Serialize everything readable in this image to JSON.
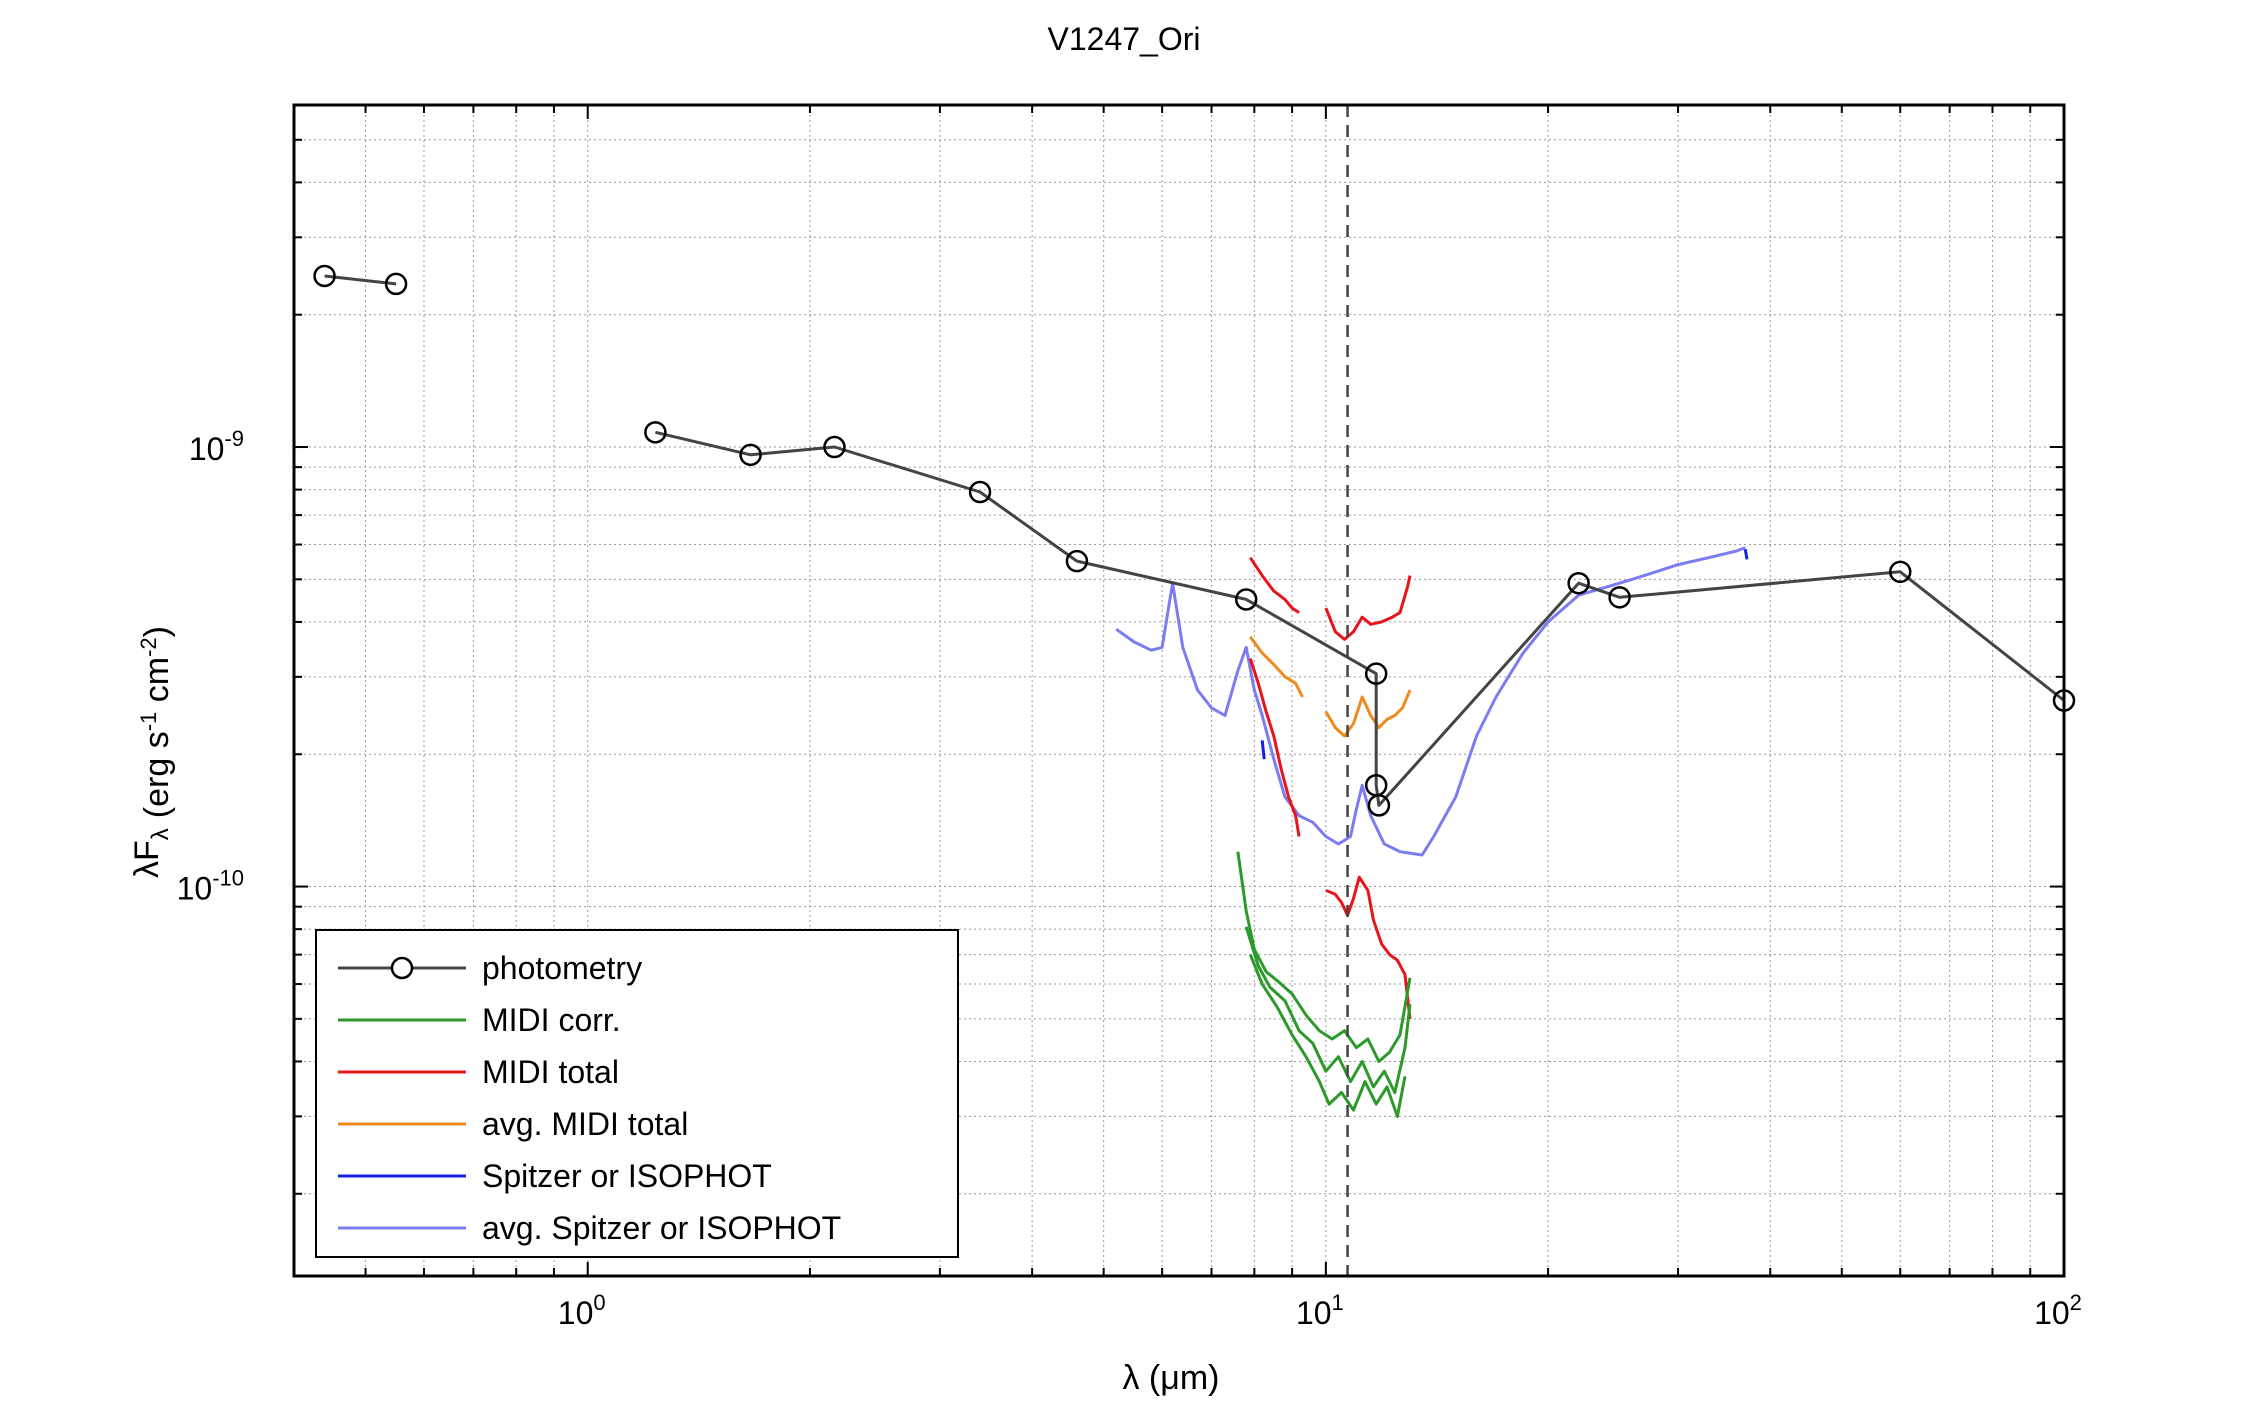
{
  "chart_data": {
    "type": "line",
    "title": "V1247_Ori",
    "xlabel": "λ (μm)",
    "ylabel": "λF",
    "ylabel_sub": "λ",
    "ylabel_units": "(erg s-1 cm-2)",
    "xscale": "log",
    "yscale": "log",
    "xlim": [
      0.4,
      100
    ],
    "ylim": [
      1.3e-11,
      6e-09
    ],
    "grid": true,
    "legend_position": "lower-left",
    "x_ticks": [
      {
        "value": 1,
        "base": "10",
        "exp": "0"
      },
      {
        "value": 10,
        "base": "10",
        "exp": "1"
      },
      {
        "value": 100,
        "base": "10",
        "exp": "2"
      }
    ],
    "y_ticks": [
      {
        "value": 1e-10,
        "base": "10",
        "exp": "-10"
      },
      {
        "value": 1e-09,
        "base": "10",
        "exp": "-9"
      }
    ],
    "vline": {
      "x": 10.7,
      "style": "dashed",
      "color": "#444444"
    },
    "series": [
      {
        "name": "photometry",
        "color": "#444444",
        "marker": "circle",
        "segments": [
          [
            [
              0.44,
              2.45e-09
            ],
            [
              0.55,
              2.35e-09
            ]
          ],
          [
            [
              1.235,
              1.08e-09
            ],
            [
              1.662,
              9.6e-10
            ],
            [
              2.159,
              1e-09
            ],
            [
              3.4,
              7.9e-10
            ],
            [
              4.6,
              5.5e-10
            ],
            [
              7.8,
              4.5e-10
            ],
            [
              11.7,
              3.05e-10
            ],
            [
              11.7,
              1.7e-10
            ],
            [
              11.8,
              1.53e-10
            ],
            [
              22,
              4.9e-10
            ],
            [
              25,
              4.55e-10
            ],
            [
              60,
              5.2e-10
            ],
            [
              100,
              2.65e-10
            ]
          ]
        ]
      },
      {
        "name": "MIDI corr.",
        "color": "#2b9a2b",
        "segments": [
          [
            [
              7.6,
              1.2e-10
            ],
            [
              7.8,
              8.8e-11
            ],
            [
              8.0,
              7.2e-11
            ],
            [
              8.3,
              6.4e-11
            ],
            [
              8.6,
              6.1e-11
            ],
            [
              9.0,
              5.7e-11
            ],
            [
              9.4,
              5.1e-11
            ],
            [
              9.8,
              4.7e-11
            ],
            [
              10.2,
              4.5e-11
            ],
            [
              10.6,
              4.7e-11
            ],
            [
              11.0,
              4.3e-11
            ],
            [
              11.4,
              4.5e-11
            ],
            [
              11.8,
              4e-11
            ],
            [
              12.2,
              4.2e-11
            ],
            [
              12.6,
              4.6e-11
            ],
            [
              13.0,
              6.2e-11
            ]
          ],
          [
            [
              7.8,
              8.1e-11
            ],
            [
              8.1,
              6.6e-11
            ],
            [
              8.4,
              5.9e-11
            ],
            [
              8.8,
              5.5e-11
            ],
            [
              9.2,
              4.7e-11
            ],
            [
              9.6,
              4.4e-11
            ],
            [
              10.0,
              3.8e-11
            ],
            [
              10.4,
              4.1e-11
            ],
            [
              10.8,
              3.6e-11
            ],
            [
              11.2,
              4e-11
            ],
            [
              11.6,
              3.5e-11
            ],
            [
              12.0,
              3.8e-11
            ],
            [
              12.4,
              3.4e-11
            ],
            [
              12.8,
              4.3e-11
            ],
            [
              13.0,
              5.4e-11
            ]
          ],
          [
            [
              7.9,
              7e-11
            ],
            [
              8.2,
              6e-11
            ],
            [
              8.6,
              5.3e-11
            ],
            [
              9.0,
              4.6e-11
            ],
            [
              9.4,
              4.1e-11
            ],
            [
              9.8,
              3.6e-11
            ],
            [
              10.1,
              3.2e-11
            ],
            [
              10.5,
              3.4e-11
            ],
            [
              10.9,
              3.1e-11
            ],
            [
              11.3,
              3.6e-11
            ],
            [
              11.7,
              3.2e-11
            ],
            [
              12.1,
              3.5e-11
            ],
            [
              12.5,
              3e-11
            ],
            [
              12.8,
              3.7e-11
            ]
          ]
        ]
      },
      {
        "name": "MIDI total",
        "color": "#e8141c",
        "segments": [
          [
            [
              7.9,
              5.6e-10
            ],
            [
              8.2,
              5.1e-10
            ],
            [
              8.5,
              4.7e-10
            ],
            [
              8.8,
              4.5e-10
            ],
            [
              9.0,
              4.3e-10
            ],
            [
              9.2,
              4.2e-10
            ]
          ],
          [
            [
              10.0,
              4.3e-10
            ],
            [
              10.3,
              3.8e-10
            ],
            [
              10.6,
              3.65e-10
            ],
            [
              10.9,
              3.8e-10
            ],
            [
              11.2,
              4.1e-10
            ],
            [
              11.5,
              3.95e-10
            ],
            [
              11.9,
              4e-10
            ],
            [
              12.3,
              4.1e-10
            ],
            [
              12.6,
              4.2e-10
            ],
            [
              12.9,
              4.8e-10
            ],
            [
              13.0,
              5.1e-10
            ]
          ],
          [
            [
              7.9,
              3.3e-10
            ],
            [
              8.1,
              2.9e-10
            ],
            [
              8.3,
              2.5e-10
            ],
            [
              8.5,
              2.2e-10
            ],
            [
              8.7,
              1.85e-10
            ],
            [
              8.9,
              1.6e-10
            ],
            [
              9.1,
              1.45e-10
            ],
            [
              9.2,
              1.3e-10
            ]
          ],
          [
            [
              10.0,
              9.8e-11
            ],
            [
              10.3,
              9.6e-11
            ],
            [
              10.5,
              9.2e-11
            ],
            [
              10.7,
              8.6e-11
            ],
            [
              10.9,
              9.4e-11
            ],
            [
              11.1,
              1.05e-10
            ],
            [
              11.4,
              9.8e-11
            ],
            [
              11.6,
              8.4e-11
            ],
            [
              11.9,
              7.4e-11
            ],
            [
              12.2,
              7e-11
            ],
            [
              12.5,
              6.8e-11
            ],
            [
              12.8,
              6.3e-11
            ],
            [
              13.0,
              5e-11
            ]
          ]
        ]
      },
      {
        "name": "avg. MIDI total",
        "color": "#f08a1e",
        "segments": [
          [
            [
              7.9,
              3.7e-10
            ],
            [
              8.2,
              3.4e-10
            ],
            [
              8.5,
              3.2e-10
            ],
            [
              8.8,
              3e-10
            ],
            [
              9.1,
              2.9e-10
            ],
            [
              9.3,
              2.7e-10
            ]
          ],
          [
            [
              10.0,
              2.5e-10
            ],
            [
              10.3,
              2.3e-10
            ],
            [
              10.6,
              2.2e-10
            ],
            [
              10.9,
              2.35e-10
            ],
            [
              11.2,
              2.7e-10
            ],
            [
              11.5,
              2.45e-10
            ],
            [
              11.8,
              2.3e-10
            ],
            [
              12.1,
              2.4e-10
            ],
            [
              12.4,
              2.45e-10
            ],
            [
              12.7,
              2.55e-10
            ],
            [
              13.0,
              2.8e-10
            ]
          ]
        ]
      },
      {
        "name": "Spitzer or ISOPHOT",
        "color": "#1420e6",
        "segments": [
          [
            [
              8.2,
              2.15e-10
            ],
            [
              8.25,
              1.95e-10
            ]
          ],
          [
            [
              37,
              5.85e-10
            ],
            [
              37.2,
              5.55e-10
            ]
          ]
        ]
      },
      {
        "name": "avg. Spitzer or ISOPHOT",
        "color": "#7b7bf2",
        "segments": [
          [
            [
              5.2,
              3.85e-10
            ],
            [
              5.5,
              3.6e-10
            ],
            [
              5.8,
              3.45e-10
            ],
            [
              6.0,
              3.5e-10
            ],
            [
              6.2,
              4.9e-10
            ],
            [
              6.4,
              3.5e-10
            ],
            [
              6.7,
              2.8e-10
            ],
            [
              7.0,
              2.55e-10
            ],
            [
              7.3,
              2.45e-10
            ],
            [
              7.6,
              3.1e-10
            ],
            [
              7.8,
              3.5e-10
            ],
            [
              8.0,
              2.8e-10
            ],
            [
              8.2,
              2.45e-10
            ],
            [
              8.5,
              1.95e-10
            ],
            [
              8.8,
              1.6e-10
            ],
            [
              9.2,
              1.45e-10
            ],
            [
              9.6,
              1.4e-10
            ],
            [
              10.0,
              1.3e-10
            ],
            [
              10.4,
              1.25e-10
            ],
            [
              10.8,
              1.3e-10
            ],
            [
              11.0,
              1.5e-10
            ],
            [
              11.2,
              1.7e-10
            ],
            [
              11.5,
              1.45e-10
            ],
            [
              12.0,
              1.25e-10
            ],
            [
              12.6,
              1.2e-10
            ],
            [
              13.5,
              1.18e-10
            ],
            [
              14.0,
              1.3e-10
            ],
            [
              15.0,
              1.6e-10
            ],
            [
              16.0,
              2.2e-10
            ],
            [
              17.0,
              2.7e-10
            ],
            [
              18.5,
              3.4e-10
            ],
            [
              20.0,
              4e-10
            ],
            [
              22.0,
              4.6e-10
            ],
            [
              24.0,
              4.8e-10
            ],
            [
              26.0,
              5e-10
            ],
            [
              28.0,
              5.2e-10
            ],
            [
              30.0,
              5.4e-10
            ],
            [
              33.0,
              5.6e-10
            ],
            [
              36.0,
              5.8e-10
            ],
            [
              37.0,
              5.9e-10
            ]
          ]
        ]
      }
    ]
  }
}
